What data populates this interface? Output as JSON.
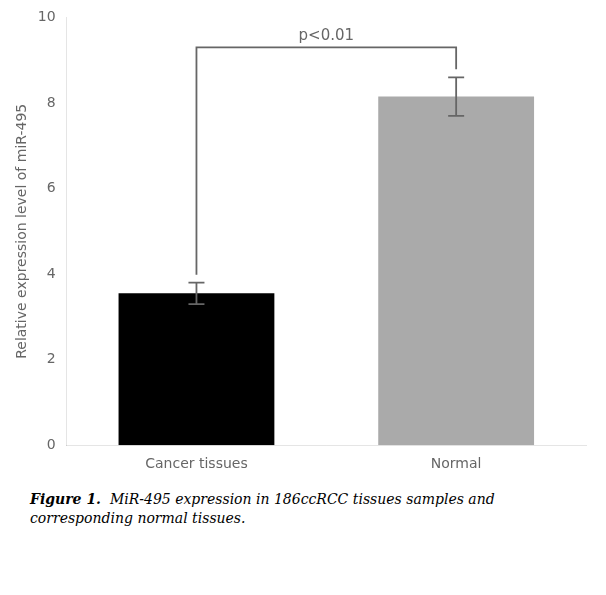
{
  "chart_data": {
    "type": "bar",
    "categories": [
      "Cancer tissues",
      "Normal"
    ],
    "values": [
      3.55,
      8.15
    ],
    "errors": [
      0.25,
      0.45
    ],
    "colors": [
      "#000000",
      "#aaaaaa"
    ],
    "ylabel": "Relative expression level of miR-495",
    "ylim": [
      0,
      10
    ],
    "yticks": [
      0,
      2,
      4,
      6,
      8,
      10
    ],
    "grid": false,
    "annotations": [
      {
        "text": "p<0.01",
        "y": 9.3
      }
    ],
    "caption_bold": "Figure 1.",
    "caption": "  MiR-495 expression in 186ccRCC tissues samples and\ncorresponding normal tissues."
  }
}
